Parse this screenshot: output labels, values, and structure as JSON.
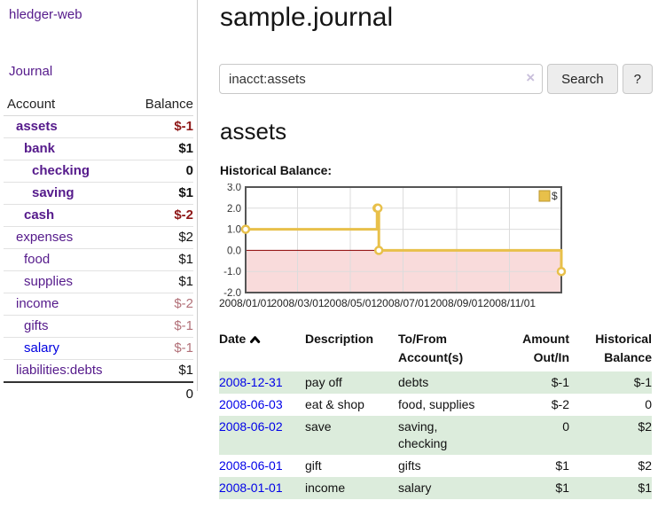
{
  "sidebar": {
    "brand": "hledger-web",
    "journal_link": "Journal",
    "account_header": "Account",
    "balance_header": "Balance",
    "accounts": [
      {
        "name": "assets",
        "balance": "$-1",
        "level": "lvl-1",
        "weight": "bold",
        "name_tone": "link-visited",
        "balance_tone": "neg-strong"
      },
      {
        "name": "bank",
        "balance": "$1",
        "level": "lvl-2",
        "weight": "bold",
        "name_tone": "link-visited",
        "balance_tone": ""
      },
      {
        "name": "checking",
        "balance": "0",
        "level": "lvl-3",
        "weight": "bold",
        "name_tone": "link-visited",
        "balance_tone": ""
      },
      {
        "name": "saving",
        "balance": "$1",
        "level": "lvl-3",
        "weight": "bold",
        "name_tone": "link-visited",
        "balance_tone": ""
      },
      {
        "name": "cash",
        "balance": "$-2",
        "level": "lvl-2",
        "weight": "bold",
        "name_tone": "link-visited",
        "balance_tone": "neg-strong"
      },
      {
        "name": "expenses",
        "balance": "$2",
        "level": "lvl-1",
        "weight": "",
        "name_tone": "link-visited",
        "balance_tone": ""
      },
      {
        "name": "food",
        "balance": "$1",
        "level": "lvl-2",
        "weight": "",
        "name_tone": "link-visited",
        "balance_tone": ""
      },
      {
        "name": "supplies",
        "balance": "$1",
        "level": "lvl-2",
        "weight": "",
        "name_tone": "link-visited",
        "balance_tone": ""
      },
      {
        "name": "income",
        "balance": "$-2",
        "level": "lvl-1",
        "weight": "",
        "name_tone": "link-visited",
        "balance_tone": "neg-faded"
      },
      {
        "name": "gifts",
        "balance": "$-1",
        "level": "lvl-2",
        "weight": "",
        "name_tone": "link-visited",
        "balance_tone": "neg-faded"
      },
      {
        "name": "salary",
        "balance": "$-1",
        "level": "lvl-2",
        "weight": "",
        "name_tone": "link-new",
        "balance_tone": "neg-faded"
      },
      {
        "name": "liabilities:debts",
        "balance": "$1",
        "level": "lvl-1",
        "weight": "",
        "name_tone": "link-visited",
        "balance_tone": ""
      }
    ],
    "total": "0"
  },
  "header": {
    "title": "sample.journal"
  },
  "search": {
    "query": "inacct:assets",
    "clear_icon": "×",
    "button_label": "Search",
    "help_label": "?"
  },
  "main": {
    "account_heading": "assets",
    "chart_label": "Historical Balance:"
  },
  "chart_data": {
    "type": "line",
    "step": true,
    "title": "Historical Balance:",
    "series": [
      {
        "name": "$",
        "points": [
          {
            "date": "2008-01-01",
            "value": 1
          },
          {
            "date": "2008-06-01",
            "value": 2
          },
          {
            "date": "2008-06-02",
            "value": 2
          },
          {
            "date": "2008-06-03",
            "value": 0
          },
          {
            "date": "2008-12-31",
            "value": -1
          }
        ]
      }
    ],
    "x_ticks": [
      "2008/01/01",
      "2008/03/01",
      "2008/05/01",
      "2008/07/01",
      "2008/09/01",
      "2008/11/01"
    ],
    "y_ticks": [
      3.0,
      2.0,
      1.0,
      0.0,
      -1.0,
      -2.0
    ],
    "ylim": [
      -2,
      3
    ],
    "xlim": [
      "2008-01-01",
      "2008-12-31"
    ],
    "legend": {
      "label": "$",
      "position": "top-right"
    },
    "negative_region_shaded": true,
    "colors": {
      "line": "#e8c04a",
      "marker_fill": "#ffffff",
      "zero_line": "#8b0000",
      "negative_fill": "#f9dbdb",
      "grid": "#dcdcdc",
      "border": "#555555"
    }
  },
  "register": {
    "headers": {
      "date": "Date",
      "description": "Description",
      "account": "To/From Account(s)",
      "amount": "Amount Out/In",
      "balance": "Historical Balance"
    },
    "rows": [
      {
        "date": "2008-12-31",
        "description": "pay off",
        "accounts": "debts",
        "amount": "$-1",
        "amount_tone": "neg-strong",
        "balance": "$-1",
        "balance_tone": "neg-strong"
      },
      {
        "date": "2008-06-03",
        "description": "eat & shop",
        "accounts": "food, supplies",
        "amount": "$-2",
        "amount_tone": "neg-strong",
        "balance": "0",
        "balance_tone": ""
      },
      {
        "date": "2008-06-02",
        "description": "save",
        "accounts": "saving, checking",
        "amount": "0",
        "amount_tone": "",
        "balance": "$2",
        "balance_tone": ""
      },
      {
        "date": "2008-06-01",
        "description": "gift",
        "accounts": "gifts",
        "amount": "$1",
        "amount_tone": "",
        "balance": "$2",
        "balance_tone": ""
      },
      {
        "date": "2008-01-01",
        "description": "income",
        "accounts": "salary",
        "amount": "$1",
        "amount_tone": "",
        "balance": "$1",
        "balance_tone": ""
      }
    ]
  }
}
